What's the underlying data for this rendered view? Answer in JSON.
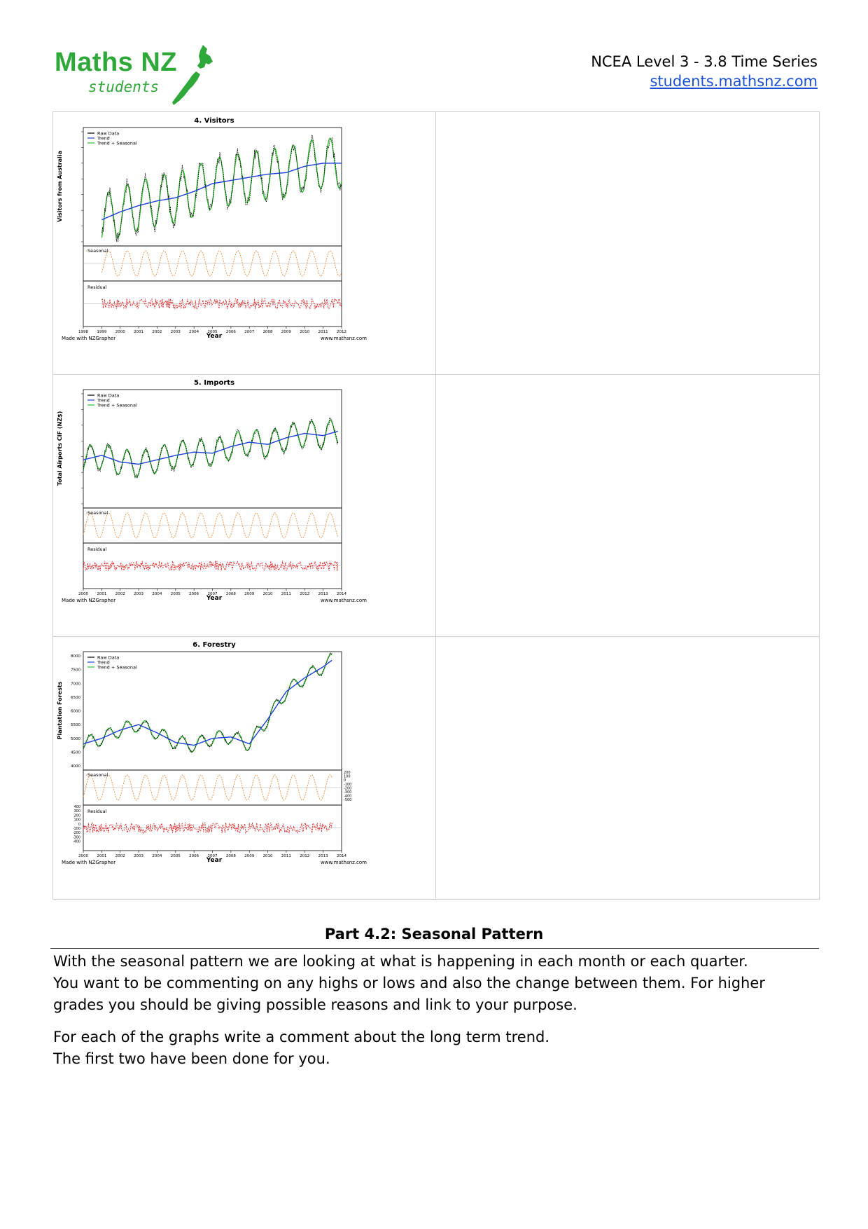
{
  "header": {
    "logo_main": "Maths NZ",
    "logo_sub": "students",
    "course": "NCEA Level 3 - 3.8 Time Series",
    "site": "students.mathsnz.com",
    "brand_color": "#2fa83a",
    "link_color": "#1a4fd6"
  },
  "chart_data": [
    {
      "type": "line",
      "title": "4. Visitors",
      "xlabel": "Year",
      "ylabel": "Visitors from Australia",
      "legend": [
        "Raw Data",
        "Trend",
        "Trend + Seasonal"
      ],
      "legend_placement": "top-left",
      "x_ticks": [
        "1998",
        "1999",
        "2000",
        "2001",
        "2002",
        "2003",
        "2004",
        "2005",
        "2006",
        "2007",
        "2008",
        "2009",
        "2010",
        "2011",
        "2012"
      ],
      "xlim": [
        1998,
        2012
      ],
      "ylim": [
        10000,
        45000
      ],
      "seasonal_label": "Seasonal",
      "residual_label": "Residual",
      "credit_left": "Made with NZGrapher",
      "credit_right": "www.mathsnz.com",
      "trend": {
        "x": [
          1999,
          2000,
          2001,
          2002,
          2003,
          2004,
          2005,
          2006,
          2007,
          2008,
          2009,
          2010,
          2011,
          2012
        ],
        "y": [
          17000,
          19500,
          21500,
          23000,
          24000,
          26000,
          28500,
          29500,
          30500,
          31500,
          32000,
          34000,
          35000,
          35000
        ]
      },
      "seasonal_amplitude": 8000,
      "seasonal_period": 1,
      "colors": {
        "raw": "#000000",
        "trend": "#1a3fd6",
        "fit": "#2fbf2f",
        "seasonal": "#f08a3c",
        "residual": "#e02020"
      }
    },
    {
      "type": "line",
      "title": "5. Imports",
      "xlabel": "Year",
      "ylabel": "Total Airports CIF (NZ$)",
      "legend": [
        "Raw Data",
        "Trend",
        "Trend + Seasonal"
      ],
      "legend_placement": "top-left",
      "x_ticks": [
        "2000",
        "2001",
        "2002",
        "2003",
        "2004",
        "2005",
        "2006",
        "2007",
        "2008",
        "2009",
        "2010",
        "2011",
        "2012",
        "2013",
        "2014"
      ],
      "xlim": [
        2000,
        2014
      ],
      "ylim": [
        0,
        100
      ],
      "seasonal_label": "Seasonal",
      "residual_label": "Residual",
      "credit_left": "Made with NZGrapher",
      "credit_right": "www.mathsnz.com",
      "trend": {
        "x": [
          2000,
          2001,
          2002,
          2003,
          2004,
          2005,
          2006,
          2007,
          2008,
          2009,
          2010,
          2011,
          2012,
          2013,
          2013.8
        ],
        "y": [
          40,
          44,
          38,
          36,
          40,
          44,
          47,
          46,
          52,
          56,
          54,
          60,
          64,
          62,
          66
        ]
      },
      "seasonal_amplitude": 12,
      "seasonal_period": 1,
      "colors": {
        "raw": "#000000",
        "trend": "#1a3fd6",
        "fit": "#2fbf2f",
        "seasonal": "#f08a3c",
        "residual": "#e02020"
      }
    },
    {
      "type": "line",
      "title": "6. Forestry",
      "xlabel": "Year",
      "ylabel": "Plantation Forests",
      "legend": [
        "Raw Data",
        "Trend",
        "Trend + Seasonal"
      ],
      "legend_placement": "top-left",
      "x_ticks": [
        "2000",
        "2001",
        "2002",
        "2003",
        "2004",
        "2005",
        "2006",
        "2007",
        "2008",
        "2009",
        "2010",
        "2011",
        "2012",
        "2013",
        "2014"
      ],
      "xlim": [
        2000,
        2014
      ],
      "ylim": [
        4000,
        8000
      ],
      "y_ticks": [
        "4000",
        "4500",
        "5000",
        "5500",
        "6000",
        "6500",
        "7000",
        "7500",
        "8000"
      ],
      "seasonal_label": "Seasonal",
      "residual_label": "Residual",
      "seasonal_ticks": [
        "200",
        "100",
        "0",
        "-100",
        "-200",
        "-300",
        "-400",
        "-500"
      ],
      "residual_ticks": [
        "400",
        "300",
        "200",
        "100",
        "0",
        "-100",
        "-200",
        "-300",
        "-400"
      ],
      "credit_left": "Made with NZGrapher",
      "credit_right": "www.mathsnz.com",
      "trend": {
        "x": [
          2000,
          2001,
          2002,
          2003,
          2004,
          2005,
          2006,
          2007,
          2008,
          2009,
          2010,
          2011,
          2012,
          2013,
          2013.5
        ],
        "y": [
          4800,
          5000,
          5300,
          5500,
          5200,
          4850,
          4750,
          5000,
          5050,
          4800,
          5700,
          6700,
          7200,
          7600,
          7850
        ]
      },
      "seasonal_amplitude": 250,
      "seasonal_period": 1,
      "colors": {
        "raw": "#000000",
        "trend": "#1a3fd6",
        "fit": "#2fbf2f",
        "seasonal": "#f08a3c",
        "residual": "#e02020"
      }
    }
  ],
  "section": {
    "title": "Part 4.2: Seasonal Pattern",
    "p1_line1": "With the seasonal pattern we are looking at what is happening in each month or each quarter.",
    "p1_line2": "You want to be commenting on any highs or lows and also the change between them. For higher",
    "p1_line3": "grades you should be giving possible reasons and link to your purpose.",
    "p2_line1": "For each of the graphs write a comment about the long term trend.",
    "p2_line2": "The first two have been done for you."
  }
}
